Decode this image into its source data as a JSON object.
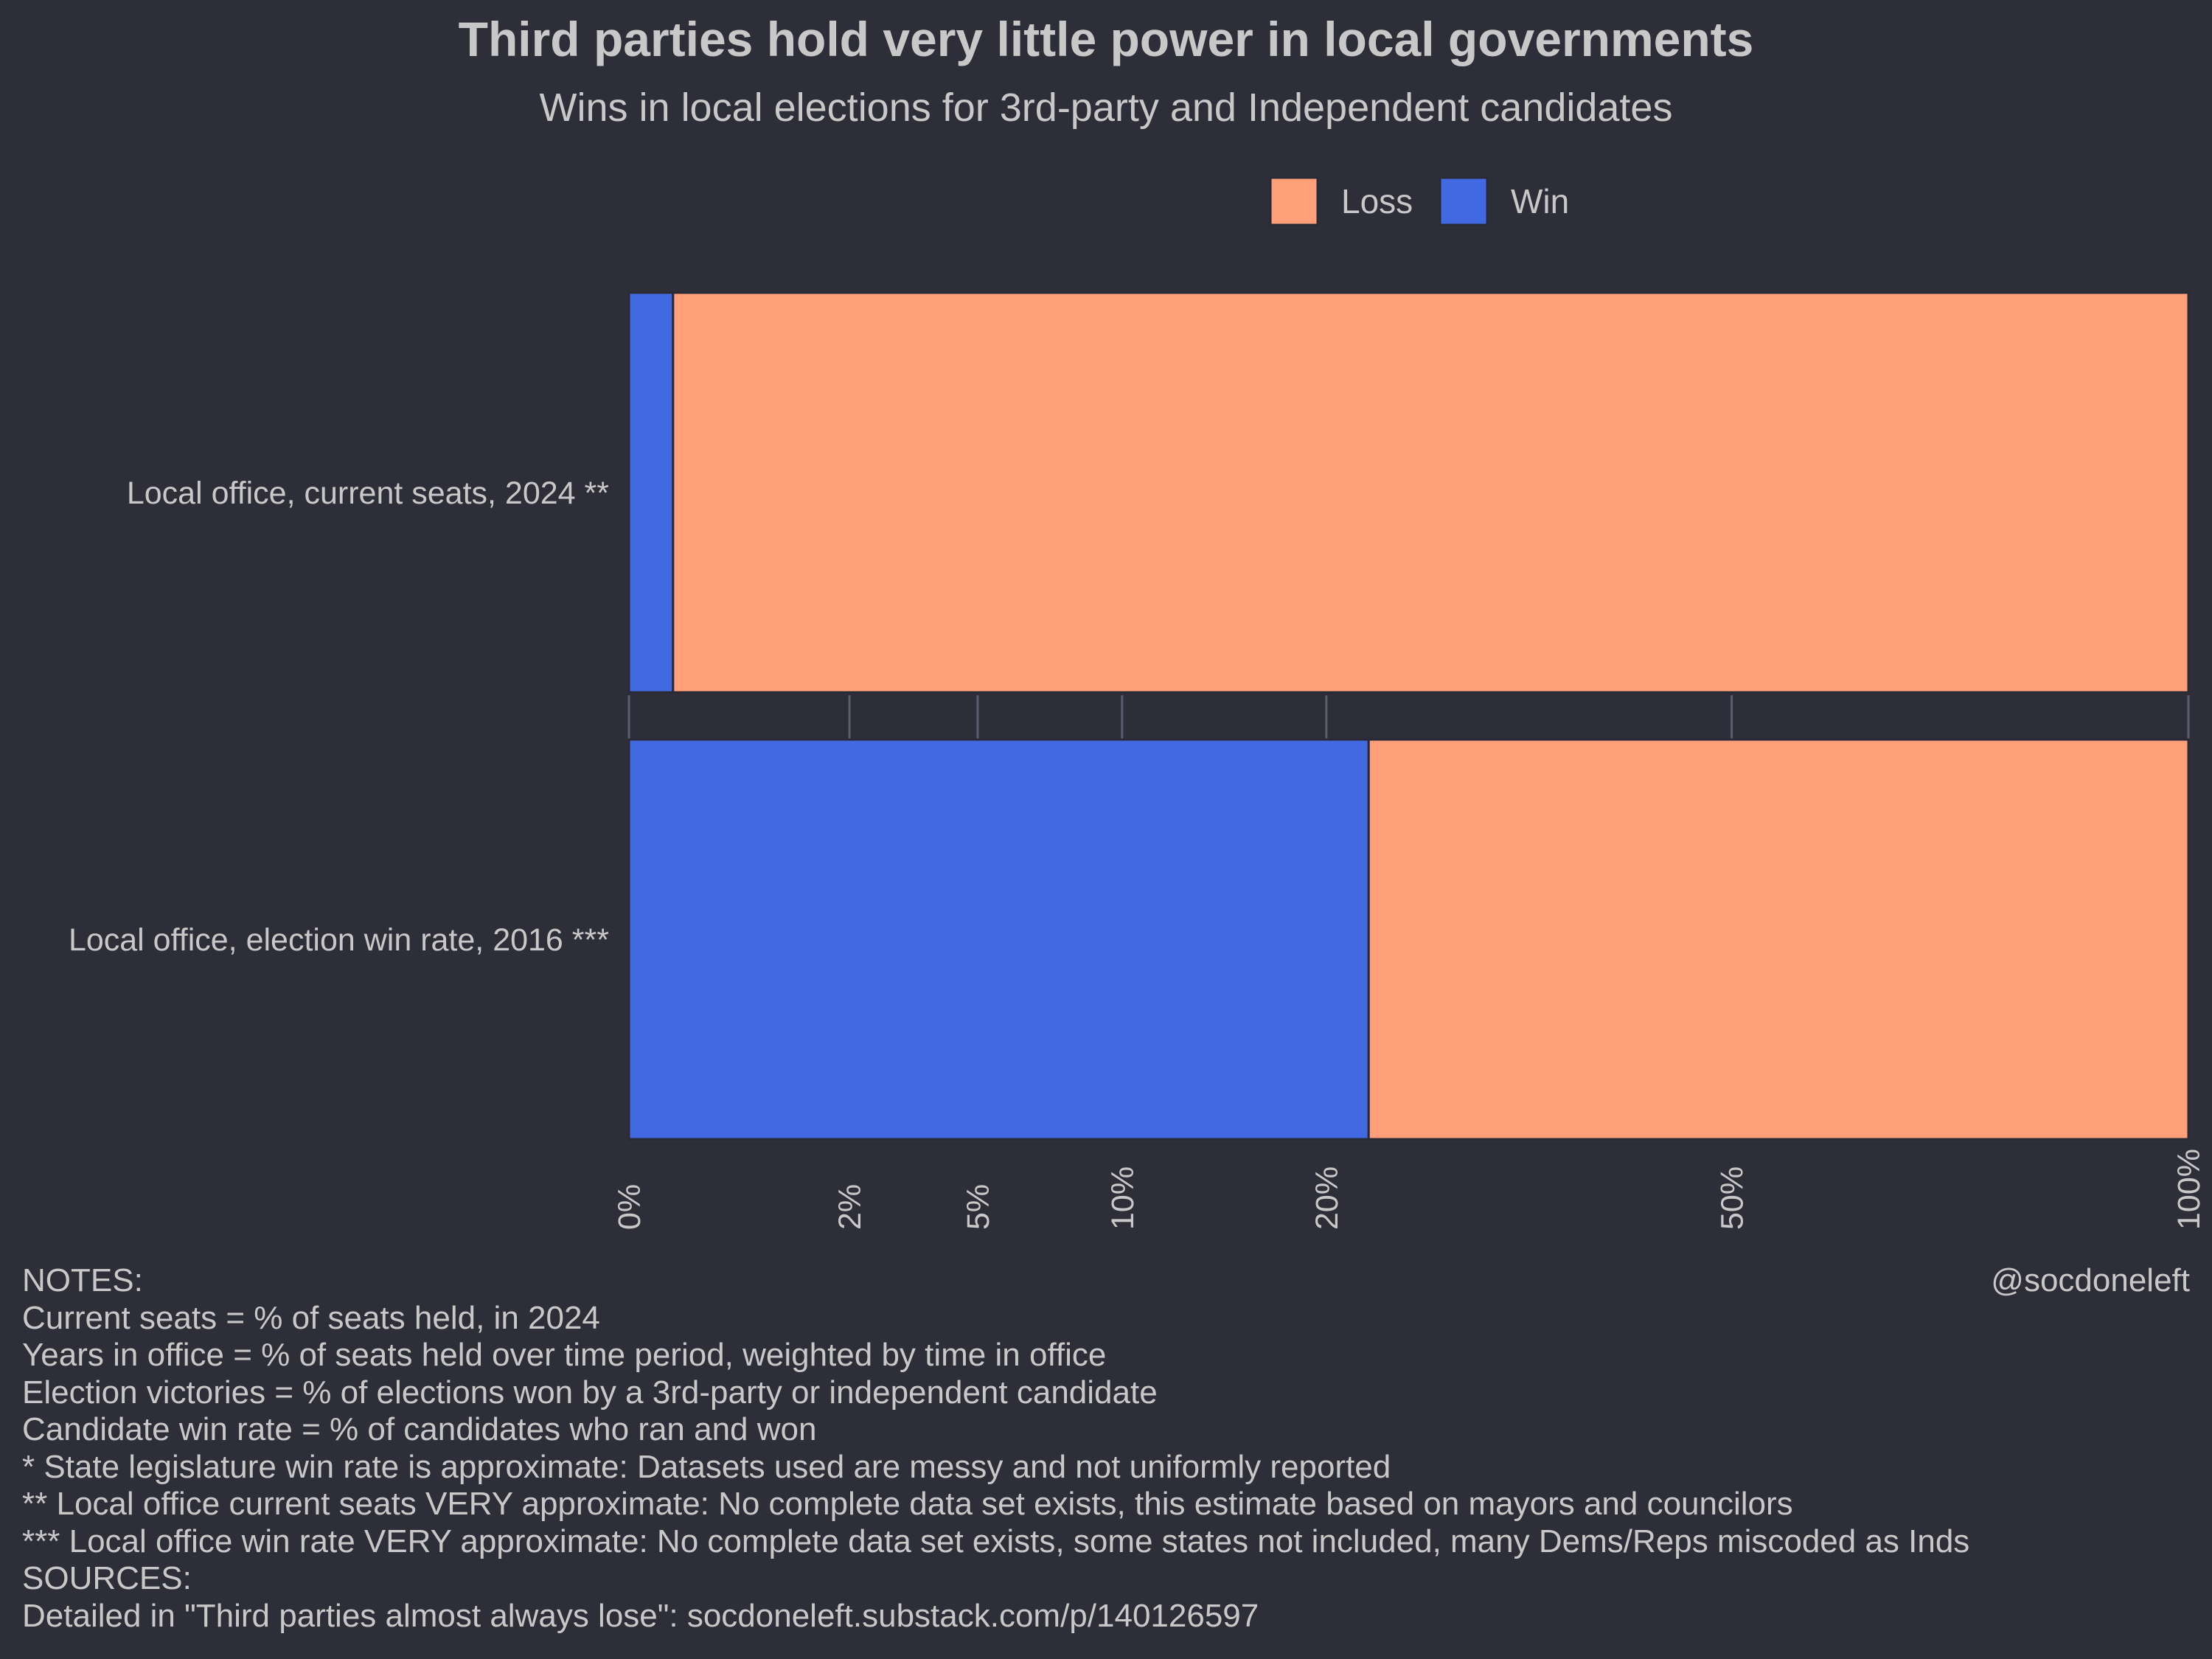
{
  "colors": {
    "background": "#2e2e38",
    "loss": "#ffa07a",
    "win": "#4169e1",
    "text": "#c8c8c8",
    "grid": "#5c5c6e",
    "bar_outline": "#2a2a36"
  },
  "chart_data": {
    "type": "bar",
    "orientation": "horizontal",
    "stacked": true,
    "title": "Third parties hold very little power in local governments",
    "subtitle": "Wins in local elections for 3rd-party and Independent candidates",
    "x_scale": "sqrt",
    "xlim": [
      0,
      100
    ],
    "x_ticks": [
      0,
      2,
      5,
      10,
      20,
      50,
      100
    ],
    "x_tick_labels": [
      "0%",
      "2%",
      "5%",
      "10%",
      "20%",
      "50%",
      "100%"
    ],
    "legend": {
      "position": "top",
      "entries": [
        "Loss",
        "Win"
      ]
    },
    "categories": [
      "Local office, current seats, 2024 **",
      "Local office, election win rate, 2016 ***"
    ],
    "series": [
      {
        "name": "Win",
        "values": [
          0.08,
          22.5
        ]
      },
      {
        "name": "Loss",
        "values": [
          99.92,
          77.5
        ]
      }
    ]
  },
  "notes": [
    "NOTES:",
    "Current seats = % of seats held, in 2024",
    "Years in office = % of seats held over time period, weighted by time in office",
    "Election victories = % of elections won by a 3rd-party or independent candidate",
    "Candidate win rate = % of candidates who ran and won",
    "* State legislature win rate is approximate: Datasets used are messy and not uniformly reported",
    "** Local office current seats VERY approximate: No complete data set exists, this estimate based on mayors and councilors",
    "*** Local office win rate VERY approximate: No complete data set exists, some states not included, many Dems/Reps miscoded as Inds",
    "SOURCES:",
    "Detailed in \"Third parties almost always lose\": socdoneleft.substack.com/p/140126597"
  ],
  "credit": "@socdoneleft"
}
